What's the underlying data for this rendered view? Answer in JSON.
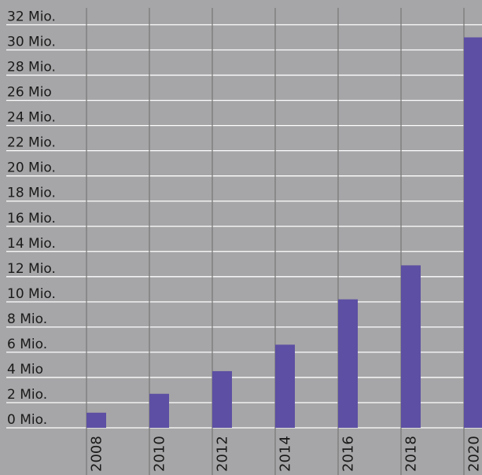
{
  "chart_data": {
    "type": "bar",
    "title": "",
    "xlabel": "",
    "ylabel": "",
    "categories": [
      "2008",
      "2010",
      "2012",
      "2014",
      "2016",
      "2018",
      "2020"
    ],
    "values": [
      1.2,
      2.7,
      4.5,
      6.6,
      10.2,
      12.9,
      31.0
    ],
    "y_tick_labels": [
      "0 Mio.",
      "2 Mio.",
      "4 Mio",
      "6 Mio.",
      "8 Mio.",
      "10 Mio.",
      "12 Mio.",
      "14 Mio.",
      "16 Mio.",
      "18 Mio.",
      "20 Mio.",
      "22 Mio.",
      "24 Mio.",
      "26 Mio",
      "28 Mio.",
      "30 Mio.",
      "32 Mio."
    ],
    "ylim": [
      0,
      32
    ],
    "grid": true,
    "legend": "none",
    "colors": {
      "bar": "#5d4fa3",
      "background": "#a6a6a8",
      "gridline": "#ffffff",
      "divider": "#7a7a7a"
    }
  }
}
